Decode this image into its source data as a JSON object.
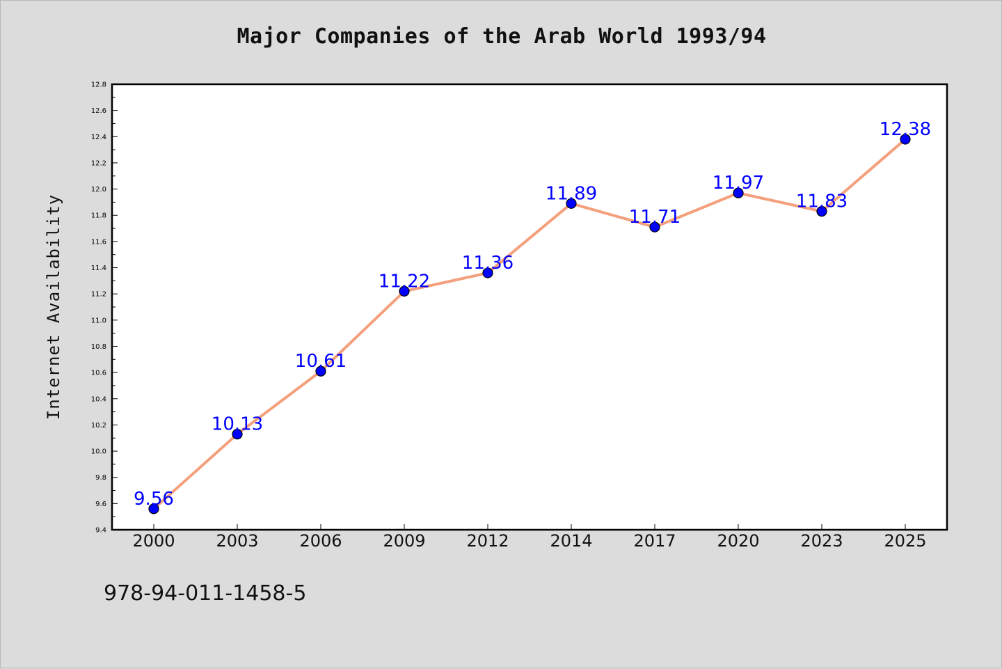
{
  "page": {
    "code": "978-94-011-1458-5"
  },
  "chart_data": {
    "type": "line",
    "title": "Major Companies of the Arab World 1993/94",
    "xlabel": "",
    "ylabel": "Internet Availability",
    "categories": [
      "2000",
      "2003",
      "2006",
      "2009",
      "2012",
      "2014",
      "2017",
      "2020",
      "2023",
      "2025"
    ],
    "values": [
      9.56,
      10.13,
      10.61,
      11.22,
      11.36,
      11.89,
      11.71,
      11.97,
      11.83,
      12.38
    ],
    "data_labels": [
      "9.56",
      "10.13",
      "10.61",
      "11.22",
      "11.36",
      "11.89",
      "11.71",
      "11.97",
      "11.83",
      "12.38"
    ],
    "ylim": [
      9.4,
      12.8
    ],
    "yticks": [
      "9.4",
      "9.6",
      "9.8",
      "10.0",
      "10.2",
      "10.4",
      "10.6",
      "10.8",
      "11.0",
      "11.2",
      "11.4",
      "11.6",
      "11.8",
      "12.0",
      "12.2",
      "12.4",
      "12.6",
      "12.8"
    ],
    "grid": false,
    "legend": "none",
    "colors": {
      "line": "#f4a07c",
      "marker": "#0000ff",
      "label": "#0000ff"
    }
  }
}
